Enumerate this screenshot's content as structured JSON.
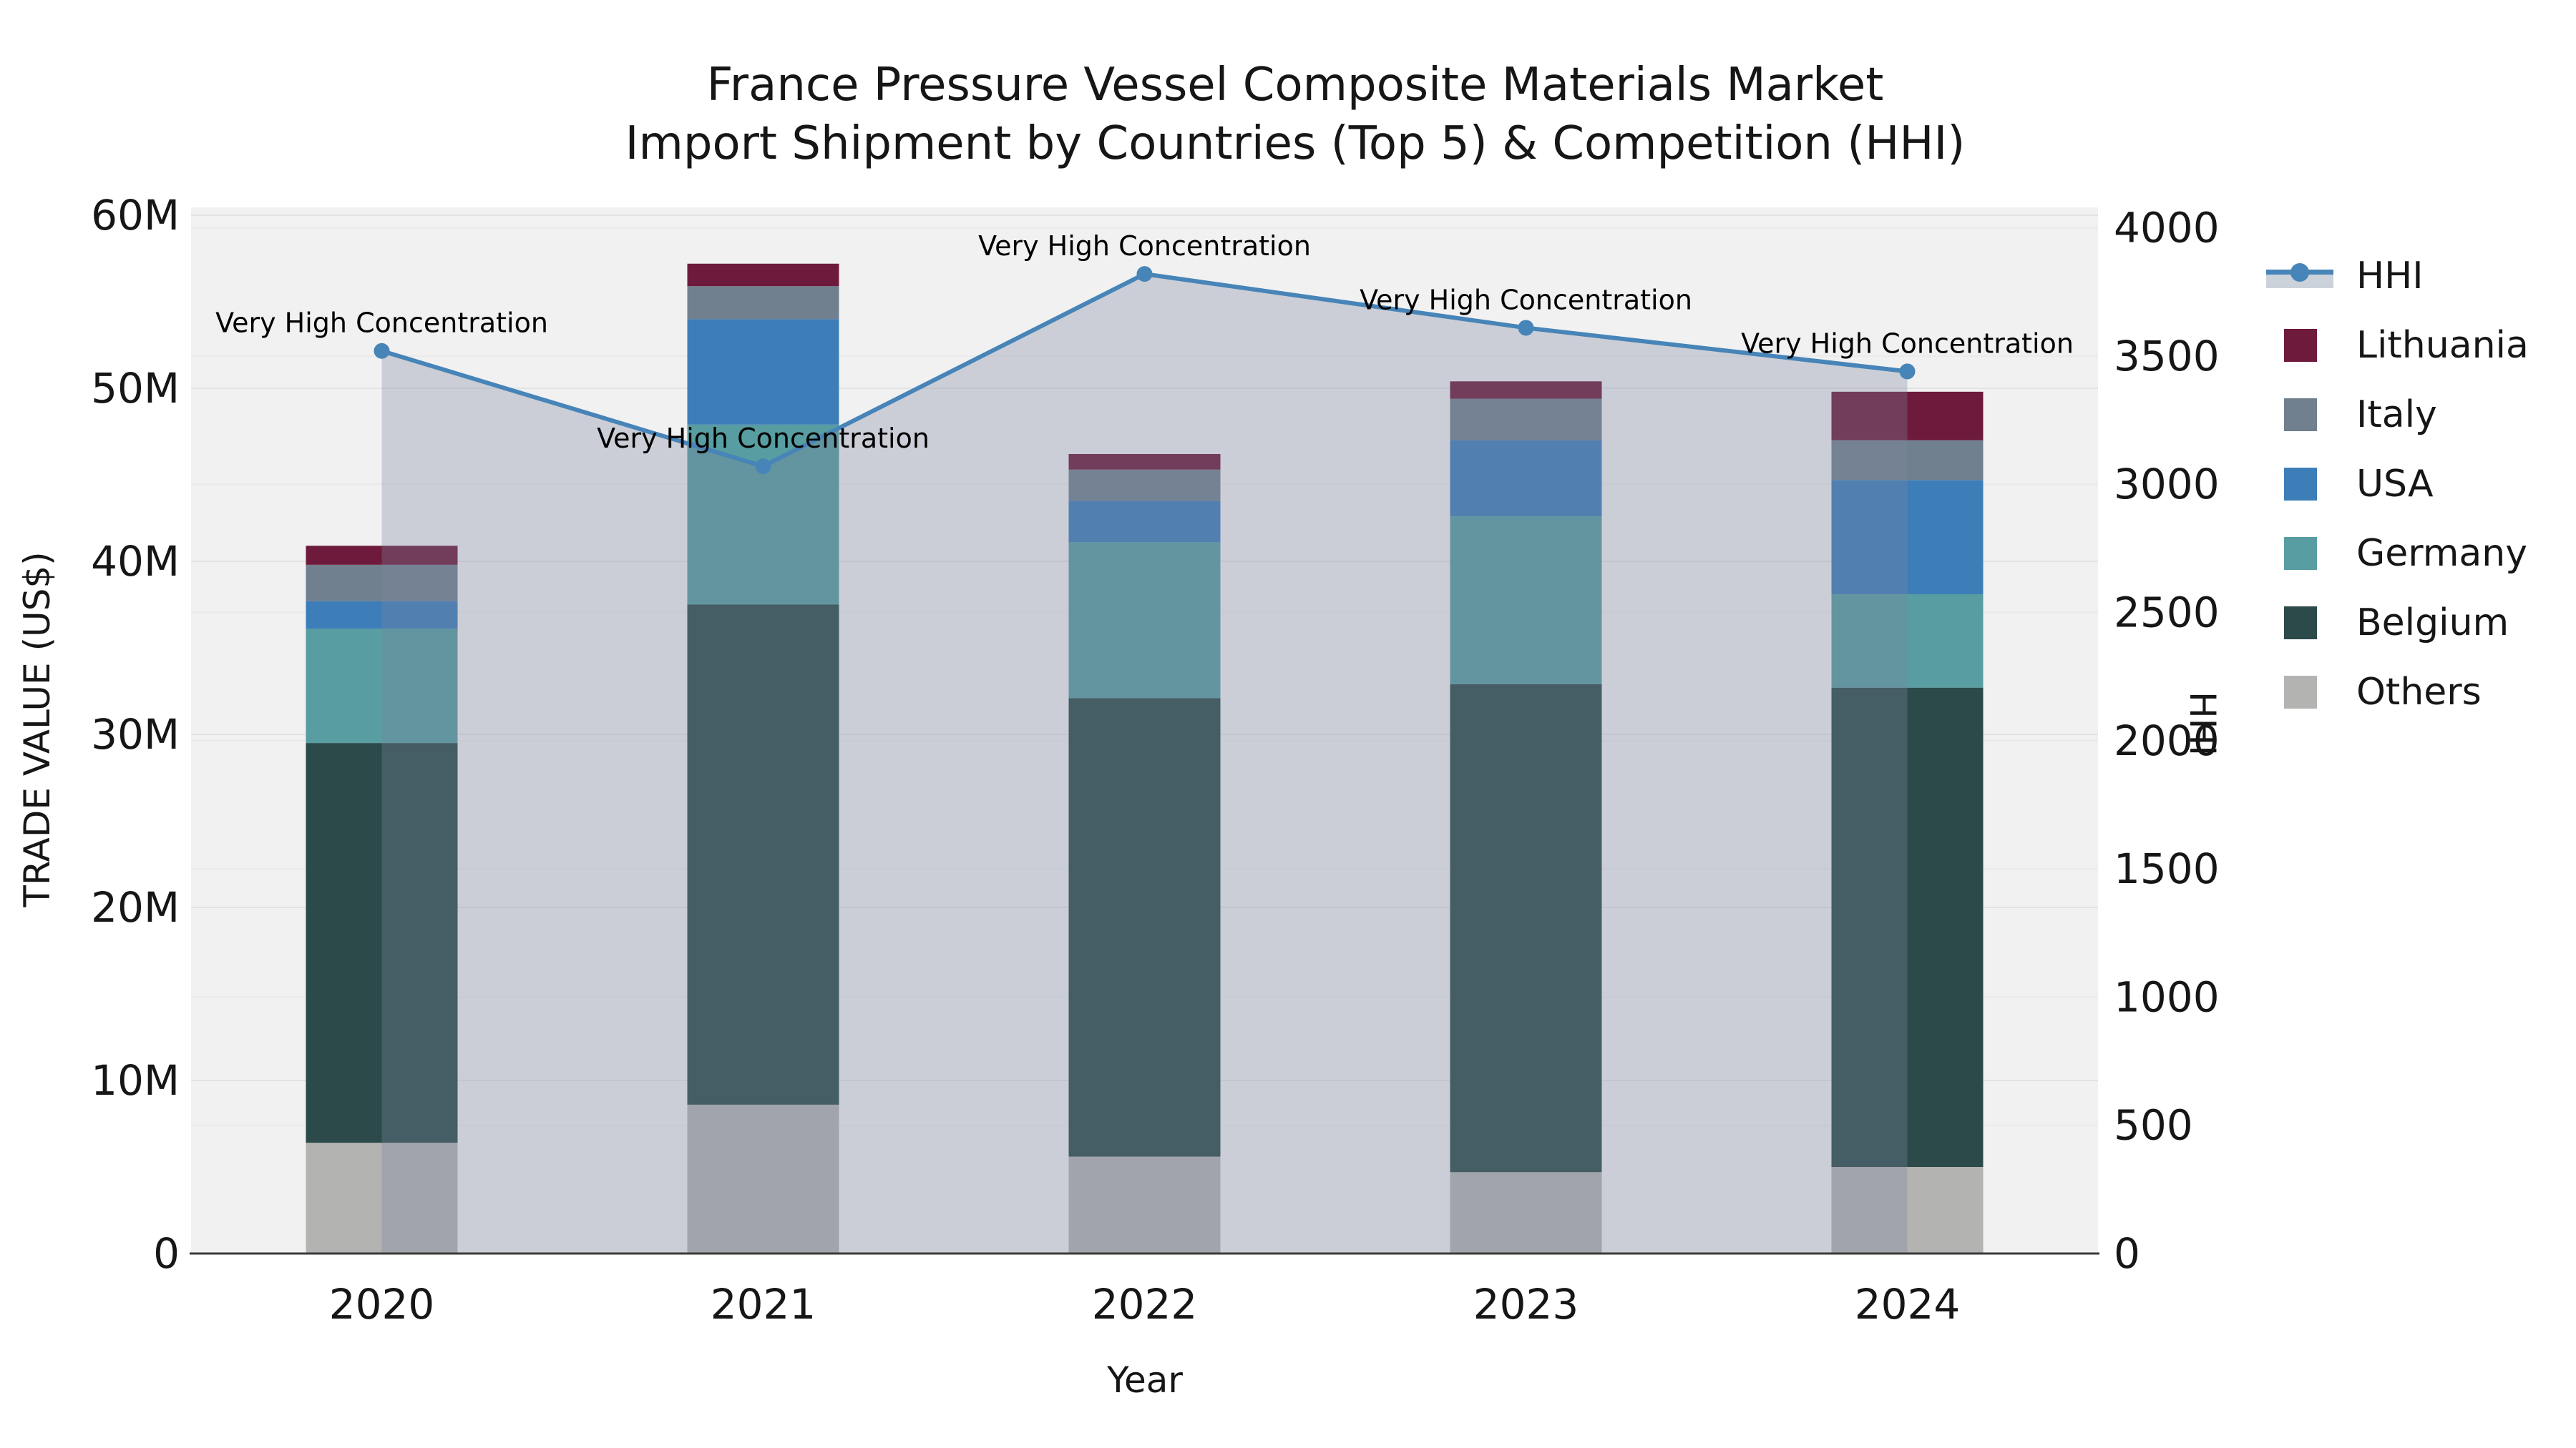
{
  "title": {
    "line1": "France Pressure Vessel Composite Materials Market",
    "line2": "Import Shipment by Countries (Top 5) & Competition (HHI)"
  },
  "axes": {
    "x_title": "Year",
    "y_left_title": "TRADE VALUE (US$)",
    "y_right_title": "HHI",
    "y_left_ticks": [
      {
        "label": "0",
        "value": 0
      },
      {
        "label": "10M",
        "value": 10
      },
      {
        "label": "20M",
        "value": 20
      },
      {
        "label": "30M",
        "value": 30
      },
      {
        "label": "40M",
        "value": 40
      },
      {
        "label": "50M",
        "value": 50
      },
      {
        "label": "60M",
        "value": 60
      }
    ],
    "y_right_ticks": [
      {
        "label": "0",
        "value": 0
      },
      {
        "label": "500",
        "value": 500
      },
      {
        "label": "1000",
        "value": 1000
      },
      {
        "label": "1500",
        "value": 1500
      },
      {
        "label": "2000",
        "value": 2000
      },
      {
        "label": "2500",
        "value": 2500
      },
      {
        "label": "3000",
        "value": 3000
      },
      {
        "label": "3500",
        "value": 3500
      },
      {
        "label": "4000",
        "value": 4000
      }
    ]
  },
  "legend": [
    {
      "label": "HHI",
      "type": "line",
      "color": "#4784b8",
      "band": "#ccd2da"
    },
    {
      "label": "Lithuania",
      "type": "box",
      "color": "#6e1a3c"
    },
    {
      "label": "Italy",
      "type": "box",
      "color": "#70808f"
    },
    {
      "label": "USA",
      "type": "box",
      "color": "#3d7eb8"
    },
    {
      "label": "Germany",
      "type": "box",
      "color": "#589da1"
    },
    {
      "label": "Belgium",
      "type": "box",
      "color": "#2c4a49"
    },
    {
      "label": "Others",
      "type": "box",
      "color": "#b3b3b1"
    }
  ],
  "chart_data": {
    "type": "combo-stacked-bar-line",
    "title": "France Pressure Vessel Composite Materials Market — Import Shipment by Countries (Top 5) & Competition (HHI)",
    "xlabel": "Year",
    "y_left_label": "TRADE VALUE (US$)",
    "y_right_label": "HHI",
    "unit": "millions US$",
    "categories": [
      "2020",
      "2021",
      "2022",
      "2023",
      "2024"
    ],
    "y_left_range": [
      0,
      60
    ],
    "y_right_range": [
      0,
      4000
    ],
    "grid": true,
    "legend_position": "right",
    "series": [
      {
        "name": "Others",
        "type": "bar",
        "color": "#b3b3b1",
        "values": [
          6.4,
          8.6,
          5.6,
          4.7,
          5.0
        ]
      },
      {
        "name": "Belgium",
        "type": "bar",
        "color": "#2c4a49",
        "values": [
          23.1,
          28.9,
          26.5,
          28.2,
          27.7
        ]
      },
      {
        "name": "Germany",
        "type": "bar",
        "color": "#589da1",
        "values": [
          6.6,
          10.4,
          9.0,
          9.7,
          5.4
        ]
      },
      {
        "name": "USA",
        "type": "bar",
        "color": "#3d7eb8",
        "values": [
          1.6,
          6.1,
          2.4,
          4.4,
          6.6
        ]
      },
      {
        "name": "Italy",
        "type": "bar",
        "color": "#70808f",
        "values": [
          2.1,
          1.9,
          1.8,
          2.4,
          2.3
        ]
      },
      {
        "name": "Lithuania",
        "type": "bar",
        "color": "#6e1a3c",
        "values": [
          1.1,
          1.3,
          0.9,
          1.0,
          2.8
        ]
      }
    ],
    "bar_totals": [
      40.9,
      57.2,
      46.2,
      50.4,
      49.8
    ],
    "hhi": {
      "name": "HHI",
      "axis": "right",
      "color": "#4784b8",
      "fill": "rgba(123,133,158,0.32)",
      "values": [
        3520,
        3070,
        3820,
        3610,
        3440
      ]
    },
    "annotations": [
      "Very High Concentration",
      "Very High Concentration",
      "Very High Concentration",
      "Very High Concentration",
      "Very High Concentration"
    ]
  }
}
